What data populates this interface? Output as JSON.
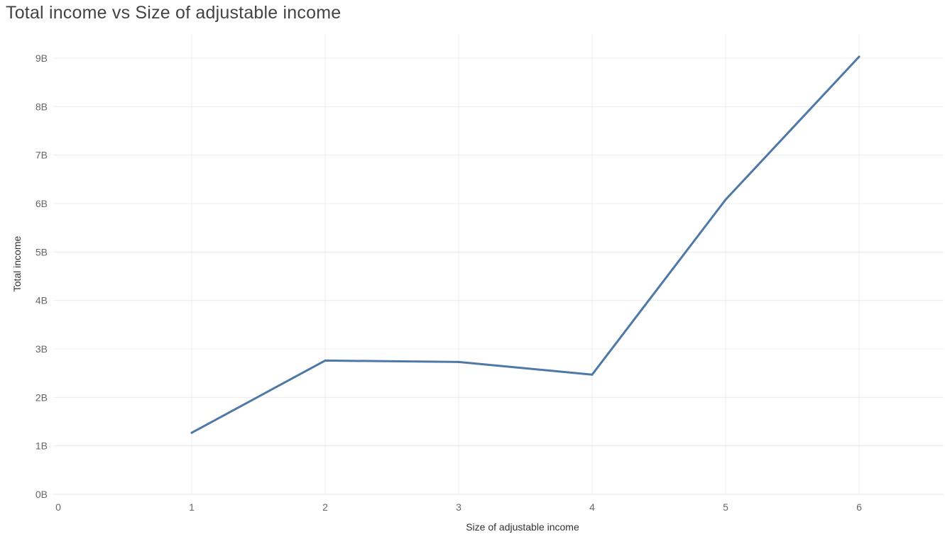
{
  "chart_data": {
    "type": "line",
    "title": "Total income vs Size of adjustable income",
    "xlabel": "Size of adjustable income",
    "ylabel": "Total income",
    "xlim": [
      0,
      6.6
    ],
    "ylim": [
      0,
      9.5
    ],
    "x_ticks": [
      0,
      1,
      2,
      3,
      4,
      5,
      6
    ],
    "x_tick_labels": [
      "0",
      "1",
      "2",
      "3",
      "4",
      "5",
      "6"
    ],
    "y_ticks": [
      0,
      1,
      2,
      3,
      4,
      5,
      6,
      7,
      8,
      9
    ],
    "y_tick_labels": [
      "0B",
      "1B",
      "2B",
      "3B",
      "4B",
      "5B",
      "6B",
      "7B",
      "8B",
      "9B"
    ],
    "y_unit": "B",
    "grid": true,
    "legend": "none",
    "series": [
      {
        "color": "#4e79a7",
        "x": [
          1,
          2,
          3,
          4,
          5,
          6
        ],
        "y": [
          1.27,
          2.76,
          2.73,
          2.47,
          6.08,
          9.03
        ]
      }
    ]
  }
}
